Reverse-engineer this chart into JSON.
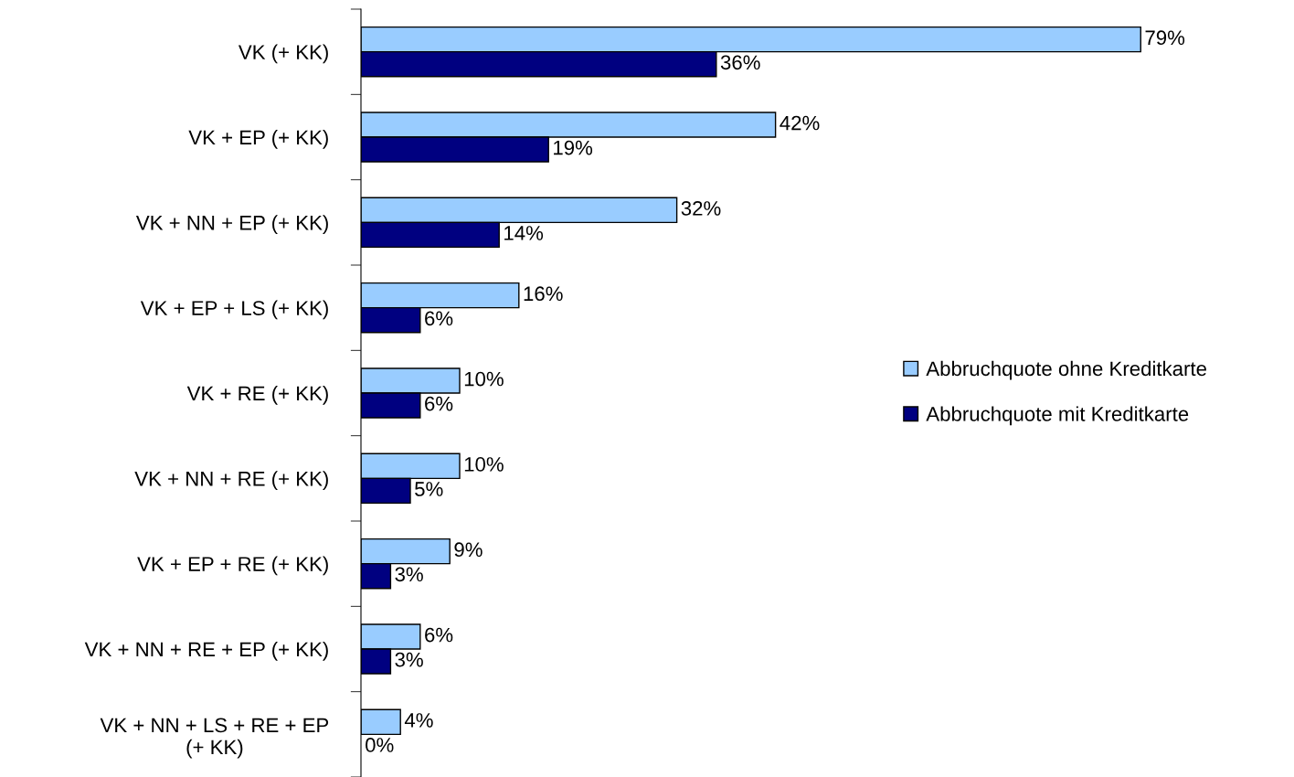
{
  "chart_data": {
    "type": "bar",
    "orientation": "horizontal",
    "legend": "right",
    "grid": false,
    "categories": [
      "VK (+ KK)",
      "VK + EP (+ KK)",
      "VK + NN + EP (+ KK)",
      "VK + EP + LS (+ KK)",
      "VK + RE (+ KK)",
      "VK + NN + RE (+ KK)",
      "VK + EP + RE (+ KK)",
      "VK + NN + RE + EP (+ KK)",
      "VK + NN + LS + RE + EP\n(+ KK)"
    ],
    "series": [
      {
        "name": "Abbruchquote ohne Kreditkarte",
        "color": "#99ccff",
        "values": [
          79,
          42,
          32,
          16,
          10,
          10,
          9,
          6,
          4
        ],
        "value_labels": [
          "79%",
          "42%",
          "32%",
          "16%",
          "10%",
          "10%",
          "9%",
          "6%",
          "4%"
        ]
      },
      {
        "name": "Abbruchquote mit Kreditkarte",
        "color": "#000080",
        "values": [
          36,
          19,
          14,
          6,
          6,
          5,
          3,
          3,
          0
        ],
        "value_labels": [
          "36%",
          "19%",
          "14%",
          "6%",
          "6%",
          "5%",
          "3%",
          "3%",
          "0%"
        ]
      }
    ]
  }
}
